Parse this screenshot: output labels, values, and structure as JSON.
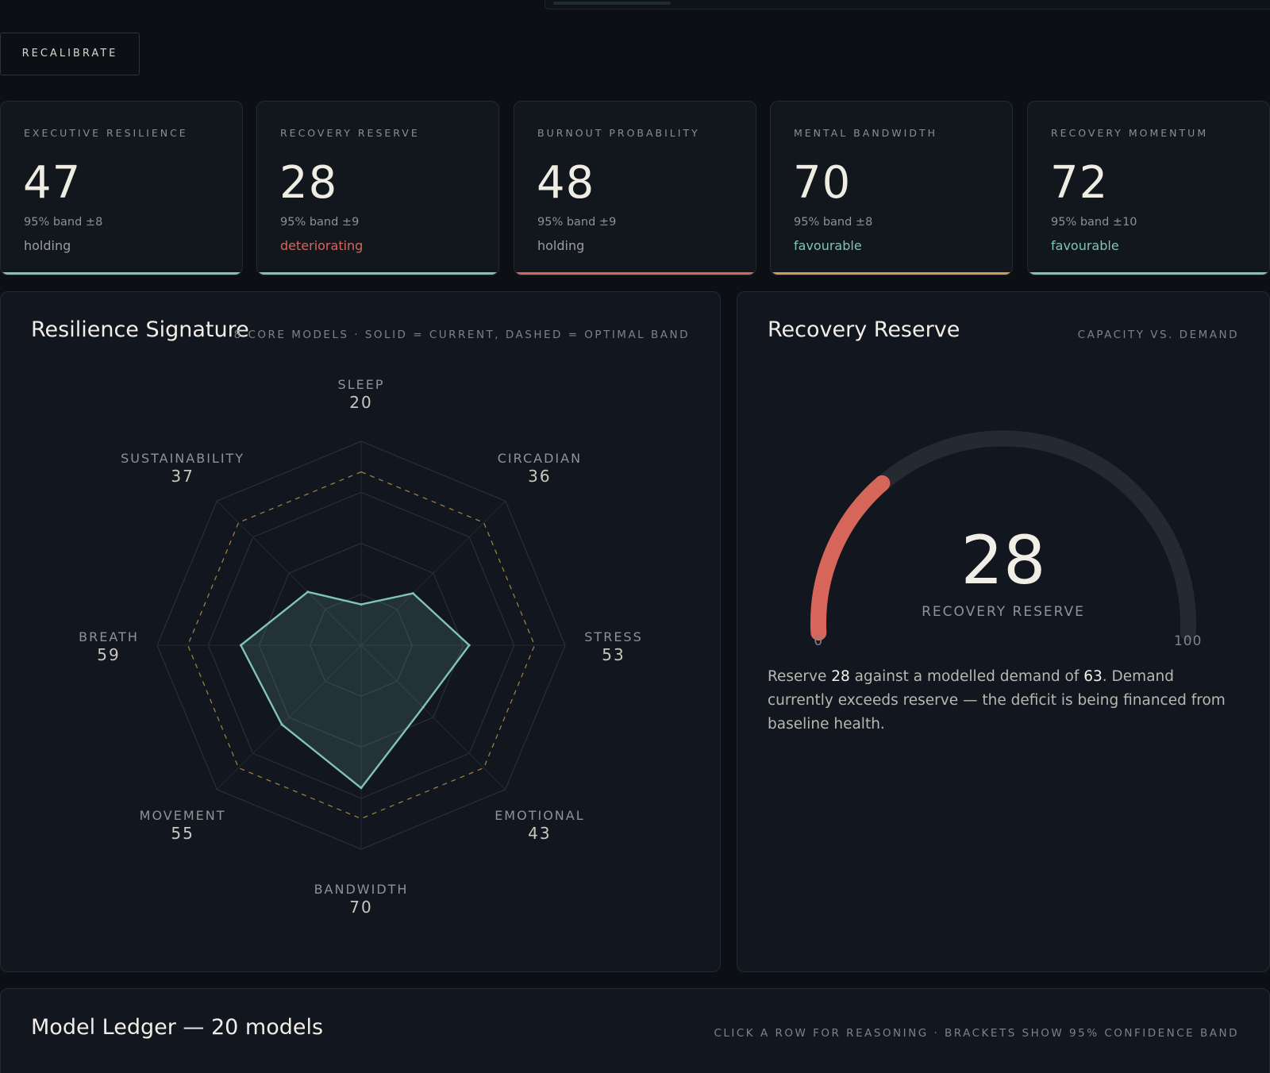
{
  "toolbar": {
    "recalibrate_label": "RECALIBRATE"
  },
  "colors": {
    "teal": "#7fc4b4",
    "red": "#d7665a",
    "amber": "#c9a04e",
    "muted": "#9a9d9f"
  },
  "kpis": [
    {
      "label": "EXECUTIVE RESILIENCE",
      "value": "47",
      "band": "95% band ±8",
      "status": "holding",
      "status_tone": "neutral",
      "accent": "#7fc4b4"
    },
    {
      "label": "RECOVERY RESERVE",
      "value": "28",
      "band": "95% band ±9",
      "status": "deteriorating",
      "status_tone": "bad",
      "accent": "#7fc4b4"
    },
    {
      "label": "BURNOUT PROBABILITY",
      "value": "48",
      "band": "95% band ±9",
      "status": "holding",
      "status_tone": "neutral",
      "accent": "#d7665a"
    },
    {
      "label": "MENTAL BANDWIDTH",
      "value": "70",
      "band": "95% band ±8",
      "status": "favourable",
      "status_tone": "good",
      "accent": "#c9a04e"
    },
    {
      "label": "RECOVERY MOMENTUM",
      "value": "72",
      "band": "95% band ±10",
      "status": "favourable",
      "status_tone": "good",
      "accent": "#7fc4b4"
    }
  ],
  "signature": {
    "title": "Resilience Signature",
    "subtitle": "8 CORE MODELS · SOLID = CURRENT, DASHED = OPTIMAL BAND"
  },
  "reserve": {
    "title": "Recovery Reserve",
    "subtitle": "CAPACITY VS. DEMAND",
    "gauge_label": "RECOVERY RESERVE",
    "text_pre": "Reserve ",
    "text_reserve": "28",
    "text_mid": " against a modelled demand of ",
    "text_demand": "63",
    "text_post": ". Demand currently exceeds reserve — the deficit is being financed from baseline health."
  },
  "ledger": {
    "title": "Model Ledger — 20 models",
    "subtitle": "CLICK A ROW FOR REASONING · BRACKETS SHOW 95% CONFIDENCE BAND"
  },
  "chart_data": [
    {
      "type": "radar",
      "title": "Resilience Signature",
      "axes": [
        "SLEEP",
        "CIRCADIAN",
        "STRESS",
        "EMOTIONAL",
        "BANDWIDTH",
        "MOVEMENT",
        "BREATH",
        "SUSTAINABILITY"
      ],
      "values": [
        20,
        36,
        53,
        43,
        70,
        55,
        59,
        37
      ],
      "optimal_band": [
        85,
        85,
        85,
        85,
        85,
        85,
        85,
        85
      ],
      "range": [
        0,
        100
      ],
      "rings": 4
    },
    {
      "type": "gauge",
      "title": "Recovery Reserve",
      "value": 28,
      "min": 0,
      "max": 100,
      "min_label": "0",
      "max_label": "100",
      "demand": 63
    }
  ]
}
